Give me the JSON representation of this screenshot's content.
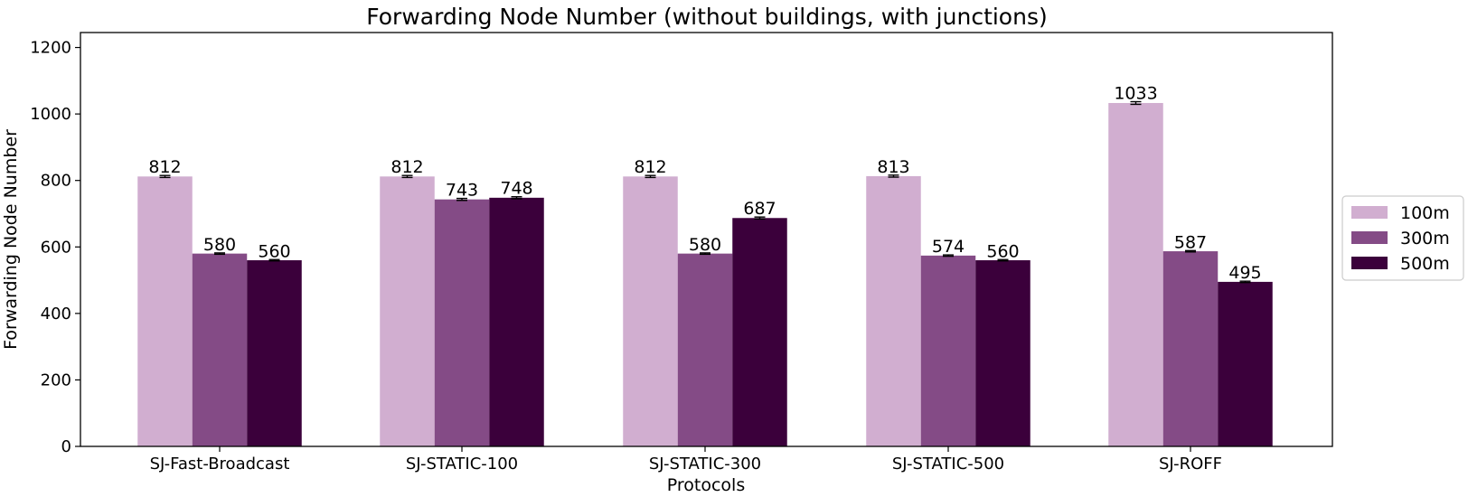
{
  "chart_data": {
    "type": "bar",
    "title": "Forwarding Node Number (without buildings, with junctions)",
    "xlabel": "Protocols",
    "ylabel": "Forwarding Node Number",
    "categories": [
      "SJ-Fast-Broadcast",
      "SJ-STATIC-100",
      "SJ-STATIC-300",
      "SJ-STATIC-500",
      "SJ-ROFF"
    ],
    "series": [
      {
        "name": "100m",
        "color": "#d1aed0",
        "values": [
          812,
          812,
          812,
          813,
          1033
        ],
        "labels": [
          "812",
          "812",
          "812",
          "813",
          "1033"
        ],
        "errors": [
          3,
          3,
          3,
          3,
          4
        ]
      },
      {
        "name": "300m",
        "color": "#844b86",
        "values": [
          580,
          743,
          580,
          574,
          587
        ],
        "labels": [
          "580",
          "743",
          "580",
          "574",
          "587"
        ],
        "errors": [
          2,
          3,
          2,
          2,
          2
        ]
      },
      {
        "name": "500m",
        "color": "#3b003b",
        "values": [
          560,
          748,
          687,
          560,
          495
        ],
        "labels": [
          "560",
          "748",
          "687",
          "560",
          "495"
        ],
        "errors": [
          2,
          3,
          3,
          2,
          2
        ]
      }
    ],
    "ylim": [
      0,
      1245
    ],
    "yticks": [
      0,
      200,
      400,
      600,
      800,
      1000,
      1200
    ],
    "grid": false,
    "legend_position": "right"
  }
}
